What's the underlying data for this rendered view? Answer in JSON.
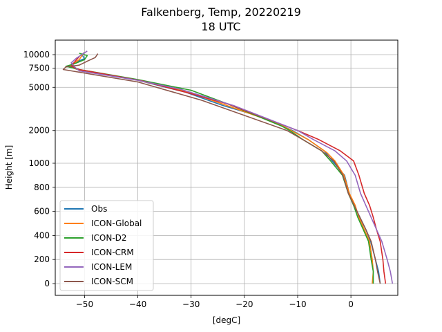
{
  "chart_data": {
    "type": "line",
    "title": "Falkenberg, Temp, 20220219",
    "subtitle": "18 UTC",
    "xlabel": "[degC]",
    "ylabel": "Height [m]",
    "xlim": [
      -55.5,
      8.8
    ],
    "y_scale": "piecewise: linear 0–1000 m, log 1000–12000 m",
    "x_ticks": [
      -50,
      -40,
      -30,
      -20,
      -10,
      0
    ],
    "x_tick_labels": [
      "−50",
      "−40",
      "−30",
      "−20",
      "−10",
      "0"
    ],
    "y_ticks": [
      0,
      200,
      400,
      600,
      800,
      1000,
      2000,
      5000,
      7500,
      10000
    ],
    "y_tick_labels": [
      "0",
      "200",
      "400",
      "600",
      "800",
      "1000",
      "2000",
      "5000",
      "7500",
      "10000"
    ],
    "grid": true,
    "legend_position": "lower-left",
    "colors": {
      "Obs": "#1f77b4",
      "ICON-Global": "#ff7f0e",
      "ICON-D2": "#2ca02c",
      "ICON-CRM": "#d62728",
      "ICON-LEM": "#9467bd",
      "ICON-SCM": "#8c564b"
    },
    "series": [
      {
        "name": "Obs",
        "points": [
          [
            5.5,
            0
          ],
          [
            5.2,
            100
          ],
          [
            4.6,
            200
          ],
          [
            3.7,
            350
          ],
          [
            2.8,
            450
          ],
          [
            1.7,
            550
          ],
          [
            0.5,
            650
          ],
          [
            -0.3,
            750
          ],
          [
            -1.2,
            900
          ],
          [
            -3.5,
            1050
          ],
          [
            -5,
            1300
          ],
          [
            -8,
            1650
          ],
          [
            -11,
            2000
          ],
          [
            -16,
            2600
          ],
          [
            -24,
            3400
          ],
          [
            -31,
            4500
          ],
          [
            -40,
            5800
          ],
          [
            -51,
            7200
          ],
          [
            -53,
            7800
          ],
          [
            -52,
            8400
          ],
          [
            -50,
            9200
          ],
          [
            -50.5,
            10000
          ],
          [
            -50,
            10500
          ]
        ]
      },
      {
        "name": "ICON-Global",
        "points": [
          [
            4,
            0
          ],
          [
            4.2,
            100
          ],
          [
            4,
            200
          ],
          [
            3.5,
            350
          ],
          [
            2.5,
            450
          ],
          [
            1.5,
            550
          ],
          [
            0.8,
            650
          ],
          [
            -0.3,
            750
          ],
          [
            -1.3,
            900
          ],
          [
            -3,
            1050
          ],
          [
            -4.5,
            1250
          ],
          [
            -8,
            1650
          ],
          [
            -13.5,
            2300
          ],
          [
            -24,
            3500
          ],
          [
            -31,
            4600
          ],
          [
            -40,
            5800
          ],
          [
            -51,
            7200
          ],
          [
            -53,
            7800
          ],
          [
            -52,
            8300
          ],
          [
            -51,
            9000
          ],
          [
            -50.5,
            9800
          ],
          [
            -50,
            10500
          ]
        ]
      },
      {
        "name": "ICON-D2",
        "points": [
          [
            4.2,
            0
          ],
          [
            4.2,
            100
          ],
          [
            3.8,
            200
          ],
          [
            3.3,
            350
          ],
          [
            2.3,
            450
          ],
          [
            1.3,
            550
          ],
          [
            0.5,
            650
          ],
          [
            -0.5,
            750
          ],
          [
            -1.6,
            900
          ],
          [
            -3.8,
            1050
          ],
          [
            -5.5,
            1300
          ],
          [
            -9,
            1650
          ],
          [
            -11.5,
            2000
          ],
          [
            -13,
            2200
          ],
          [
            -23,
            3500
          ],
          [
            -30,
            4700
          ],
          [
            -40,
            5900
          ],
          [
            -51,
            7300
          ],
          [
            -53.5,
            7800
          ],
          [
            -52,
            8200
          ],
          [
            -50,
            9000
          ],
          [
            -49.5,
            9800
          ],
          [
            -51,
            10300
          ]
        ]
      },
      {
        "name": "ICON-CRM",
        "points": [
          [
            6.5,
            0
          ],
          [
            6.2,
            100
          ],
          [
            6,
            200
          ],
          [
            5.5,
            350
          ],
          [
            4.8,
            450
          ],
          [
            4.2,
            550
          ],
          [
            3.5,
            650
          ],
          [
            2.5,
            750
          ],
          [
            1.5,
            900
          ],
          [
            0.5,
            1050
          ],
          [
            -2,
            1300
          ],
          [
            -6,
            1650
          ],
          [
            -10,
            2000
          ],
          [
            -23,
            3500
          ],
          [
            -31,
            4500
          ],
          [
            -39,
            5700
          ],
          [
            -51,
            7300
          ],
          [
            -52.5,
            7800
          ],
          [
            -52,
            8400
          ],
          [
            -51.5,
            9000
          ],
          [
            -51,
            9600
          ]
        ]
      },
      {
        "name": "ICON-LEM",
        "points": [
          [
            7.8,
            0
          ],
          [
            7.4,
            100
          ],
          [
            6.8,
            200
          ],
          [
            5.8,
            350
          ],
          [
            4.8,
            450
          ],
          [
            3.8,
            550
          ],
          [
            2.8,
            650
          ],
          [
            1.8,
            750
          ],
          [
            0.8,
            900
          ],
          [
            -0.8,
            1050
          ],
          [
            -3,
            1300
          ],
          [
            -7,
            1650
          ],
          [
            -10,
            2000
          ],
          [
            -22,
            3400
          ],
          [
            -32,
            4800
          ],
          [
            -40,
            5800
          ],
          [
            -51,
            7100
          ],
          [
            -52,
            7800
          ],
          [
            -52.5,
            8400
          ],
          [
            -51.5,
            9300
          ],
          [
            -50.5,
            10000
          ],
          [
            -49.5,
            10800
          ]
        ]
      },
      {
        "name": "ICON-SCM",
        "points": [
          [
            5.5,
            0
          ],
          [
            5,
            100
          ],
          [
            4.6,
            200
          ],
          [
            3.8,
            350
          ],
          [
            2.8,
            450
          ],
          [
            1.7,
            550
          ],
          [
            0.6,
            650
          ],
          [
            -0.5,
            750
          ],
          [
            -1.5,
            900
          ],
          [
            -3.2,
            1050
          ],
          [
            -5.5,
            1300
          ],
          [
            -9,
            1650
          ],
          [
            -12,
            2000
          ],
          [
            -28,
            3800
          ],
          [
            -40,
            5600
          ],
          [
            -54,
            7300
          ],
          [
            -53.5,
            7700
          ],
          [
            -51,
            8000
          ],
          [
            -49.5,
            8700
          ],
          [
            -48,
            9400
          ],
          [
            -47.5,
            10200
          ]
        ]
      }
    ]
  }
}
